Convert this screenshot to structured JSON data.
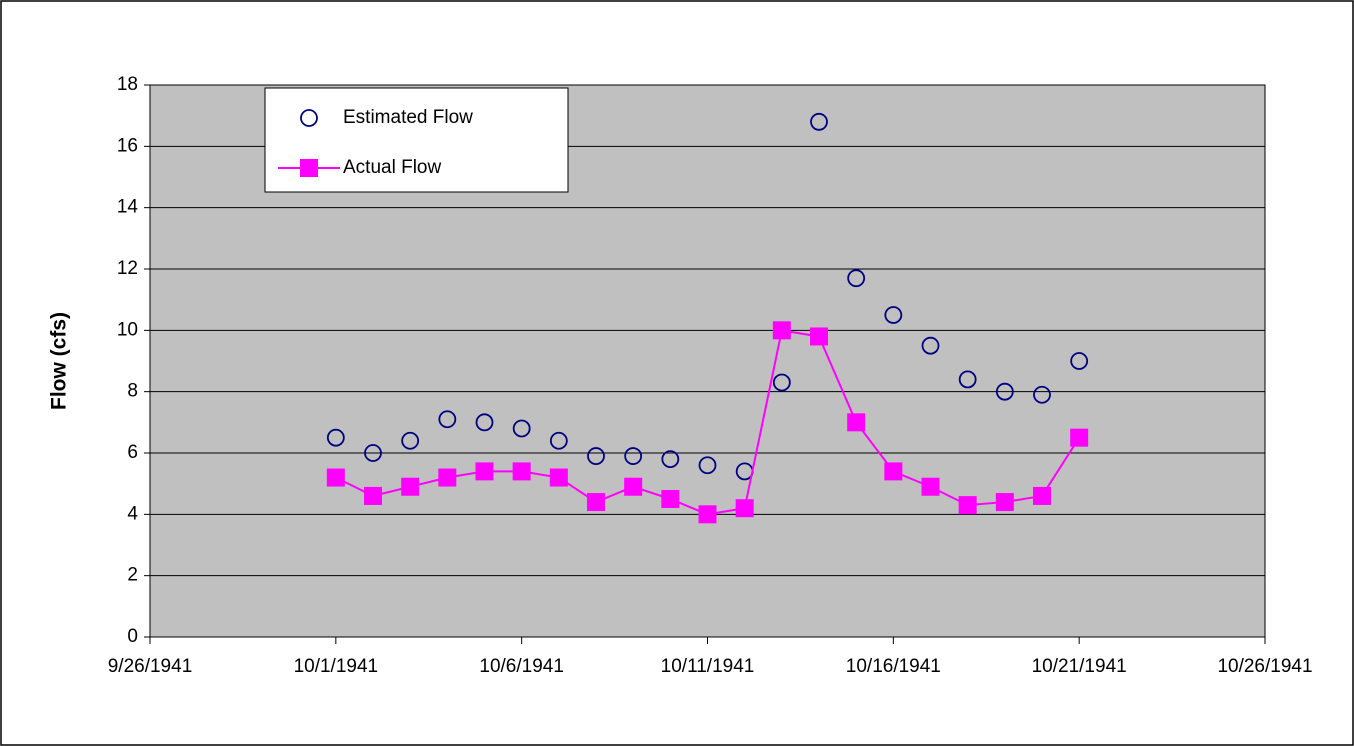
{
  "chart_data": {
    "type": "line",
    "y_label": "Flow (cfs)",
    "x": [
      "10/1/1941",
      "10/2/1941",
      "10/3/1941",
      "10/4/1941",
      "10/5/1941",
      "10/6/1941",
      "10/7/1941",
      "10/8/1941",
      "10/9/1941",
      "10/10/1941",
      "10/11/1941",
      "10/12/1941",
      "10/13/1941",
      "10/14/1941",
      "10/15/1941",
      "10/16/1941",
      "10/17/1941",
      "10/18/1941",
      "10/19/1941",
      "10/20/1941",
      "10/21/1941"
    ],
    "series": [
      {
        "name": "Estimated Flow",
        "color": "#000080",
        "marker": "circle",
        "line": false,
        "values": [
          6.5,
          6.0,
          6.4,
          7.1,
          7.0,
          6.8,
          6.4,
          5.9,
          5.9,
          5.8,
          5.6,
          5.4,
          8.3,
          16.8,
          11.7,
          10.5,
          9.5,
          8.4,
          8.0,
          7.9,
          9.0
        ]
      },
      {
        "name": "Actual Flow",
        "color": "#ff00ff",
        "marker": "square",
        "line": true,
        "values": [
          5.2,
          4.6,
          4.9,
          5.2,
          5.4,
          5.4,
          5.2,
          4.4,
          4.9,
          4.5,
          4.0,
          4.2,
          10.0,
          9.8,
          7.0,
          5.4,
          4.9,
          4.3,
          4.4,
          4.6,
          6.5
        ]
      }
    ],
    "xlim": [
      "9/26/1941",
      "10/26/1941"
    ],
    "xticks": [
      "9/26/1941",
      "10/1/1941",
      "10/6/1941",
      "10/11/1941",
      "10/16/1941",
      "10/21/1941",
      "10/26/1941"
    ],
    "ylim": [
      0,
      18
    ],
    "yticks": [
      0,
      2,
      4,
      6,
      8,
      10,
      12,
      14,
      16,
      18
    ],
    "grid": true,
    "legend": "upper left"
  }
}
